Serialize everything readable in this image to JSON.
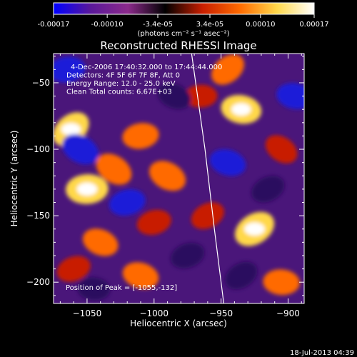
{
  "chart_data": {
    "type": "heatmap",
    "title": "Reconstructed RHESSI Image",
    "colorbar": {
      "min": -0.00017,
      "max": 0.00017,
      "ticks": [
        {
          "value": -0.00017,
          "label": "-0.00017"
        },
        {
          "value": -0.0001,
          "label": "-0.00010"
        },
        {
          "value": -3.4e-05,
          "label": "-3.4e-05"
        },
        {
          "value": 3.4e-05,
          "label": "3.4e-05"
        },
        {
          "value": 0.0001,
          "label": "0.00010"
        },
        {
          "value": 0.00017,
          "label": "0.00017"
        }
      ],
      "unit_label": "(photons cm⁻² s⁻¹ asec⁻²)",
      "colors": [
        "#0000ff",
        "#5a189a",
        "#8b2a8b",
        "#000000",
        "#c81e00",
        "#ff6a00",
        "#ffd84a",
        "#ffffff"
      ]
    },
    "xlabel": "Heliocentric X (arcsec)",
    "ylabel": "Heliocentric Y (arcsec)",
    "xlim": [
      -1075,
      -888
    ],
    "ylim": [
      -216,
      -28
    ],
    "xticks": [
      -1050,
      -1000,
      -950,
      -900
    ],
    "yticks": [
      -200,
      -150,
      -100,
      -50
    ],
    "annotations": [
      "4-Dec-2006 17:40:32.000 to 17:44:44.000",
      "Detectors: 4F 5F 6F 7F 8F, Att 0",
      "Energy Range: 12.0 - 25.0 keV",
      "Clean     Total counts: 6.67E+03"
    ],
    "peak_label": "Position of Peak = [-1055,-132]",
    "peak": [
      -1055,
      -132
    ],
    "limb": [
      [
        -972,
        -28
      ],
      [
        -962,
        -100
      ],
      [
        -955,
        -160
      ],
      [
        -948,
        -216
      ]
    ],
    "blobs": [
      {
        "x": -1062,
        "y": -85,
        "v": 0.9
      },
      {
        "x": -1050,
        "y": -130,
        "v": 1.0
      },
      {
        "x": -1030,
        "y": -115,
        "v": 0.8
      },
      {
        "x": -1010,
        "y": -90,
        "v": 0.7
      },
      {
        "x": -990,
        "y": -120,
        "v": 0.8
      },
      {
        "x": -1000,
        "y": -155,
        "v": 0.6
      },
      {
        "x": -1040,
        "y": -170,
        "v": 0.7
      },
      {
        "x": -1060,
        "y": -190,
        "v": 0.6
      },
      {
        "x": -1010,
        "y": -195,
        "v": 0.7
      },
      {
        "x": -960,
        "y": -150,
        "v": 0.6
      },
      {
        "x": -935,
        "y": -70,
        "v": 0.9
      },
      {
        "x": -925,
        "y": -160,
        "v": 1.0
      },
      {
        "x": -905,
        "y": -200,
        "v": 0.7
      },
      {
        "x": -945,
        "y": -40,
        "v": 0.7
      },
      {
        "x": -965,
        "y": -60,
        "v": 0.5
      },
      {
        "x": -905,
        "y": -100,
        "v": 0.6
      },
      {
        "x": -1065,
        "y": -40,
        "v": -0.7
      },
      {
        "x": -1055,
        "y": -100,
        "v": -0.8
      },
      {
        "x": -1020,
        "y": -140,
        "v": -0.7
      },
      {
        "x": -985,
        "y": -60,
        "v": -0.6
      },
      {
        "x": -975,
        "y": -180,
        "v": -0.6
      },
      {
        "x": -945,
        "y": -110,
        "v": -0.7
      },
      {
        "x": -915,
        "y": -130,
        "v": -0.6
      },
      {
        "x": -895,
        "y": -60,
        "v": -0.7
      },
      {
        "x": -935,
        "y": -195,
        "v": -0.6
      },
      {
        "x": -1045,
        "y": -205,
        "v": -0.5
      }
    ]
  },
  "footer": {
    "date": "18-Jul-2013 04:39"
  }
}
